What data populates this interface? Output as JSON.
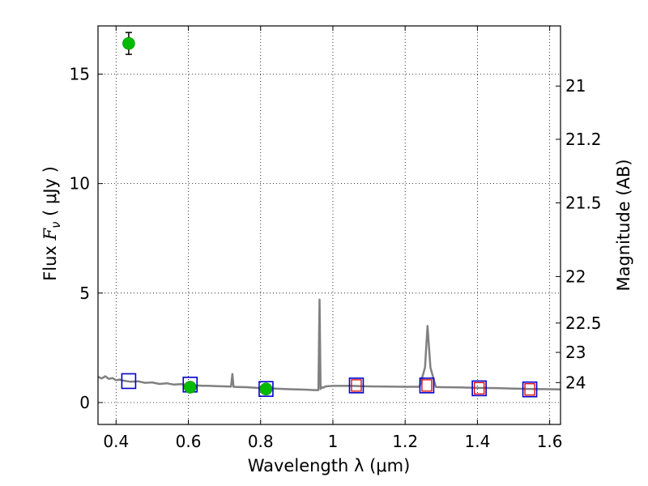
{
  "chart_data": {
    "type": "scatter",
    "xlabel": "Wavelength  λ (μm)",
    "ylabel_parts": {
      "prefix": "Flux  ",
      "symbol": "F",
      "subscript": "ν",
      "suffix": "  ( μJy )"
    },
    "ylabel2": "Magnitude (AB)",
    "xlim": [
      0.35,
      1.63
    ],
    "ylim": [
      -1.0,
      17.2
    ],
    "xticks": [
      0.4,
      0.6,
      0.8,
      1.0,
      1.2,
      1.4,
      1.6
    ],
    "xtick_labels": [
      "0.4",
      "0.6",
      "0.8",
      "1",
      "1.2",
      "1.4",
      "1.6"
    ],
    "yticks": [
      0,
      5,
      10,
      15
    ],
    "ytick_labels": [
      "0",
      "5",
      "10",
      "15"
    ],
    "magnitude_ticks": [
      21,
      21.2,
      21.5,
      22,
      22.5,
      23,
      24
    ],
    "magnitude_tick_labels": [
      "21",
      "21.2",
      "21.5",
      "22",
      "22.5",
      "23",
      "24"
    ],
    "grid": true,
    "series": [
      {
        "kind": "model_spectrum",
        "color": "#808080",
        "x": [
          0.35,
          0.36,
          0.37,
          0.38,
          0.39,
          0.4,
          0.41,
          0.42,
          0.44,
          0.46,
          0.48,
          0.5,
          0.52,
          0.54,
          0.56,
          0.58,
          0.6,
          0.62,
          0.64,
          0.66,
          0.68,
          0.7,
          0.718,
          0.722,
          0.725,
          0.728,
          0.732,
          0.76,
          0.8,
          0.84,
          0.88,
          0.92,
          0.95,
          0.96,
          0.963,
          0.966,
          0.97,
          0.974,
          0.98,
          1.0,
          1.05,
          1.1,
          1.15,
          1.2,
          1.24,
          1.255,
          1.262,
          1.27,
          1.285,
          1.3,
          1.35,
          1.4,
          1.45,
          1.5,
          1.55,
          1.6,
          1.63
        ],
        "y": [
          1.18,
          1.1,
          1.2,
          1.08,
          1.12,
          1.02,
          1.05,
          1.0,
          0.95,
          0.97,
          0.9,
          0.92,
          0.85,
          0.88,
          0.82,
          0.84,
          0.8,
          0.78,
          0.77,
          0.76,
          0.75,
          0.74,
          0.73,
          1.3,
          0.72,
          0.72,
          0.71,
          0.7,
          0.66,
          0.64,
          0.61,
          0.59,
          0.57,
          0.57,
          4.7,
          0.62,
          0.7,
          0.68,
          0.74,
          0.76,
          0.76,
          0.74,
          0.73,
          0.72,
          0.72,
          1.6,
          3.5,
          1.6,
          0.71,
          0.7,
          0.69,
          0.67,
          0.66,
          0.64,
          0.62,
          0.61,
          0.6
        ]
      },
      {
        "kind": "model_band_flux",
        "marker": "blue-square",
        "color": "#0000cc",
        "x": [
          0.435,
          0.605,
          0.815,
          1.065,
          1.26,
          1.405,
          1.545
        ],
        "y": [
          0.98,
          0.82,
          0.62,
          0.78,
          0.78,
          0.65,
          0.6
        ]
      },
      {
        "kind": "observed_upper_limit",
        "marker": "red-square",
        "color": "#dd0000",
        "x": [
          1.065,
          1.26,
          1.405,
          1.545
        ],
        "y": [
          0.78,
          0.78,
          0.65,
          0.6
        ]
      },
      {
        "kind": "observed_detection",
        "marker": "green-circle",
        "color": "#00bb00",
        "x": [
          0.435,
          0.605,
          0.815
        ],
        "y": [
          16.4,
          0.7,
          0.62
        ],
        "yerr": [
          0.5,
          0.12,
          0.1
        ]
      }
    ]
  }
}
